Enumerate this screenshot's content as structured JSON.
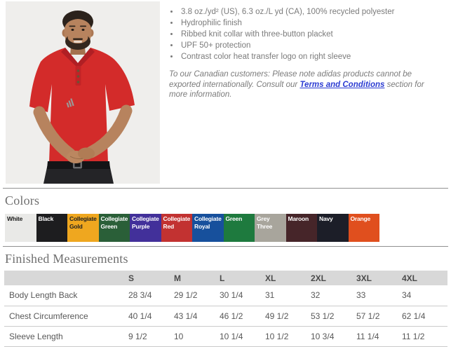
{
  "features": {
    "items": [
      "3.8 oz./yd² (US), 6.3 oz./L yd (CA), 100% recycled polyester",
      "Hydrophilic finish",
      "Ribbed knit collar with three-button placket",
      "UPF 50+ protection",
      "Contrast color heat transfer logo on right sleeve"
    ]
  },
  "note": {
    "prefix": "To our Canadian customers: Please note adidas products cannot be exported internationally. Consult our ",
    "link_text": "Terms and Conditions",
    "suffix": " section for more information."
  },
  "colors_section": {
    "heading": "Colors",
    "swatches": [
      {
        "label": "White",
        "bg": "#e9e9e7",
        "fg": "#1c1c1c"
      },
      {
        "label": "Black",
        "bg": "#1d1d1f",
        "fg": "#ffffff"
      },
      {
        "label": "Collegiate Gold",
        "bg": "#efa71f",
        "fg": "#222222"
      },
      {
        "label": "Collegiate Green",
        "bg": "#2a5f38",
        "fg": "#ffffff"
      },
      {
        "label": "Collegiate Purple",
        "bg": "#42309a",
        "fg": "#ffffff"
      },
      {
        "label": "Collegiate Red",
        "bg": "#c23231",
        "fg": "#ffffff"
      },
      {
        "label": "Collegiate Royal",
        "bg": "#17509c",
        "fg": "#ffffff"
      },
      {
        "label": "Green",
        "bg": "#1e7a3e",
        "fg": "#ffffff"
      },
      {
        "label": "Grey Three",
        "bg": "#a8a59c",
        "fg": "#ffffff"
      },
      {
        "label": "Maroon",
        "bg": "#462529",
        "fg": "#ffffff"
      },
      {
        "label": "Navy",
        "bg": "#1c1e28",
        "fg": "#ffffff"
      },
      {
        "label": "Orange",
        "bg": "#e04f1e",
        "fg": "#ffffff"
      }
    ]
  },
  "measurements": {
    "heading": "Finished Measurements",
    "sizes": [
      "S",
      "M",
      "L",
      "XL",
      "2XL",
      "3XL",
      "4XL"
    ],
    "rows": [
      {
        "label": "Body Length Back",
        "values": [
          "28 3/4",
          "29 1/2",
          "30 1/4",
          "31",
          "32",
          "33",
          "34"
        ]
      },
      {
        "label": "Chest Circumference",
        "values": [
          "40 1/4",
          "43 1/4",
          "46 1/2",
          "49 1/2",
          "53 1/2",
          "57 1/2",
          "62 1/4"
        ]
      },
      {
        "label": "Sleeve Length",
        "values": [
          "9 1/2",
          "10",
          "10 1/4",
          "10 1/2",
          "10 3/4",
          "11 1/4",
          "11 1/2"
        ]
      }
    ]
  },
  "theme": {
    "link_color": "#2b3bd2",
    "body_text_color": "#7b7b7b",
    "heading_color": "#6f6f6f",
    "table_header_bg": "#d8d8d8",
    "divider_color": "#909090",
    "shirt_red": "#d32b2a",
    "photo_background": "#efeeec"
  }
}
